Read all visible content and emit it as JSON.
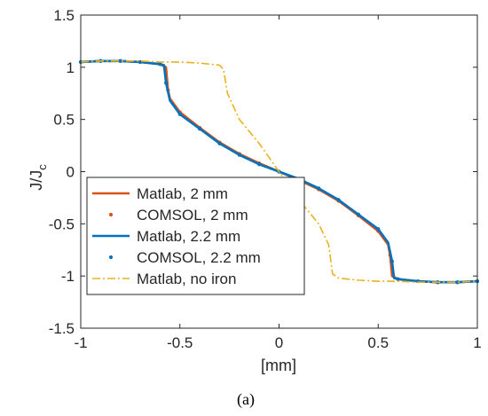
{
  "chart_data": {
    "type": "line",
    "xlabel": "[mm]",
    "ylabel_main": "J/J",
    "ylabel_sub": "c",
    "xlim": [
      -1,
      1
    ],
    "ylim": [
      -1.5,
      1.5
    ],
    "xticks": [
      -1,
      -0.5,
      0,
      0.5,
      1
    ],
    "yticks": [
      -1.5,
      -1,
      -0.5,
      0,
      0.5,
      1,
      1.5
    ],
    "grid": false,
    "legend_position": "bottom-left",
    "caption": "(a)",
    "series": [
      {
        "name": "Matlab, 2 mm",
        "style": "solid",
        "color": "#D95319",
        "x": [
          -1,
          -0.9,
          -0.8,
          -0.7,
          -0.6,
          -0.57,
          -0.56,
          -0.55,
          -0.5,
          -0.4,
          -0.3,
          -0.2,
          -0.1,
          0,
          0.1,
          0.2,
          0.3,
          0.4,
          0.5,
          0.55,
          0.56,
          0.57,
          0.6,
          0.7,
          0.8,
          0.9,
          1
        ],
        "y": [
          1.05,
          1.06,
          1.06,
          1.05,
          1.03,
          1.0,
          0.78,
          0.7,
          0.57,
          0.42,
          0.28,
          0.17,
          0.08,
          0.0,
          -0.08,
          -0.17,
          -0.28,
          -0.42,
          -0.57,
          -0.7,
          -0.8,
          -1.0,
          -1.03,
          -1.05,
          -1.06,
          -1.06,
          -1.05
        ]
      },
      {
        "name": "COMSOL, 2 mm",
        "style": "dots",
        "color": "#D95319",
        "x": [
          -1,
          -0.9,
          -0.8,
          -0.7,
          -0.6,
          -0.56,
          -0.5,
          -0.4,
          -0.3,
          -0.2,
          -0.1,
          0,
          0.1,
          0.2,
          0.3,
          0.4,
          0.5,
          0.56,
          0.6,
          0.7,
          0.8,
          0.9,
          1
        ],
        "y": [
          1.05,
          1.06,
          1.06,
          1.05,
          1.03,
          0.78,
          0.57,
          0.42,
          0.28,
          0.17,
          0.08,
          0.0,
          -0.08,
          -0.17,
          -0.28,
          -0.42,
          -0.57,
          -0.8,
          -1.03,
          -1.05,
          -1.06,
          -1.06,
          -1.05
        ]
      },
      {
        "name": "Matlab, 2.2 mm",
        "style": "solid",
        "color": "#0072BD",
        "x": [
          -1,
          -0.9,
          -0.8,
          -0.7,
          -0.6,
          -0.58,
          -0.57,
          -0.55,
          -0.5,
          -0.4,
          -0.3,
          -0.2,
          -0.1,
          0,
          0.1,
          0.2,
          0.3,
          0.4,
          0.5,
          0.55,
          0.57,
          0.58,
          0.6,
          0.7,
          0.8,
          0.9,
          1
        ],
        "y": [
          1.05,
          1.06,
          1.06,
          1.05,
          1.03,
          1.02,
          0.85,
          0.68,
          0.55,
          0.41,
          0.27,
          0.16,
          0.07,
          0.0,
          -0.07,
          -0.16,
          -0.27,
          -0.41,
          -0.55,
          -0.68,
          -0.86,
          -1.02,
          -1.03,
          -1.05,
          -1.06,
          -1.06,
          -1.05
        ]
      },
      {
        "name": "COMSOL, 2.2 mm",
        "style": "dots",
        "color": "#0072BD",
        "x": [
          -1,
          -0.9,
          -0.8,
          -0.7,
          -0.6,
          -0.57,
          -0.5,
          -0.4,
          -0.3,
          -0.2,
          -0.1,
          0,
          0.1,
          0.2,
          0.3,
          0.4,
          0.5,
          0.57,
          0.6,
          0.7,
          0.8,
          0.9,
          1
        ],
        "y": [
          1.05,
          1.06,
          1.06,
          1.05,
          1.03,
          0.85,
          0.55,
          0.41,
          0.27,
          0.16,
          0.07,
          0.0,
          -0.07,
          -0.16,
          -0.27,
          -0.41,
          -0.55,
          -0.86,
          -1.03,
          -1.05,
          -1.06,
          -1.06,
          -1.05
        ]
      },
      {
        "name": "Matlab, no iron",
        "style": "dash-dot",
        "color": "#EDB120",
        "x": [
          -1,
          -0.9,
          -0.8,
          -0.7,
          -0.6,
          -0.5,
          -0.4,
          -0.3,
          -0.28,
          -0.26,
          -0.2,
          -0.1,
          0,
          0.1,
          0.2,
          0.25,
          0.27,
          0.3,
          0.4,
          0.5,
          0.6,
          0.7,
          0.8,
          0.9,
          1
        ],
        "y": [
          1.05,
          1.06,
          1.06,
          1.06,
          1.05,
          1.05,
          1.04,
          1.02,
          0.98,
          0.75,
          0.5,
          0.27,
          0.0,
          -0.27,
          -0.5,
          -0.7,
          -0.98,
          -1.02,
          -1.04,
          -1.05,
          -1.05,
          -1.06,
          -1.06,
          -1.06,
          -1.05
        ]
      }
    ]
  }
}
